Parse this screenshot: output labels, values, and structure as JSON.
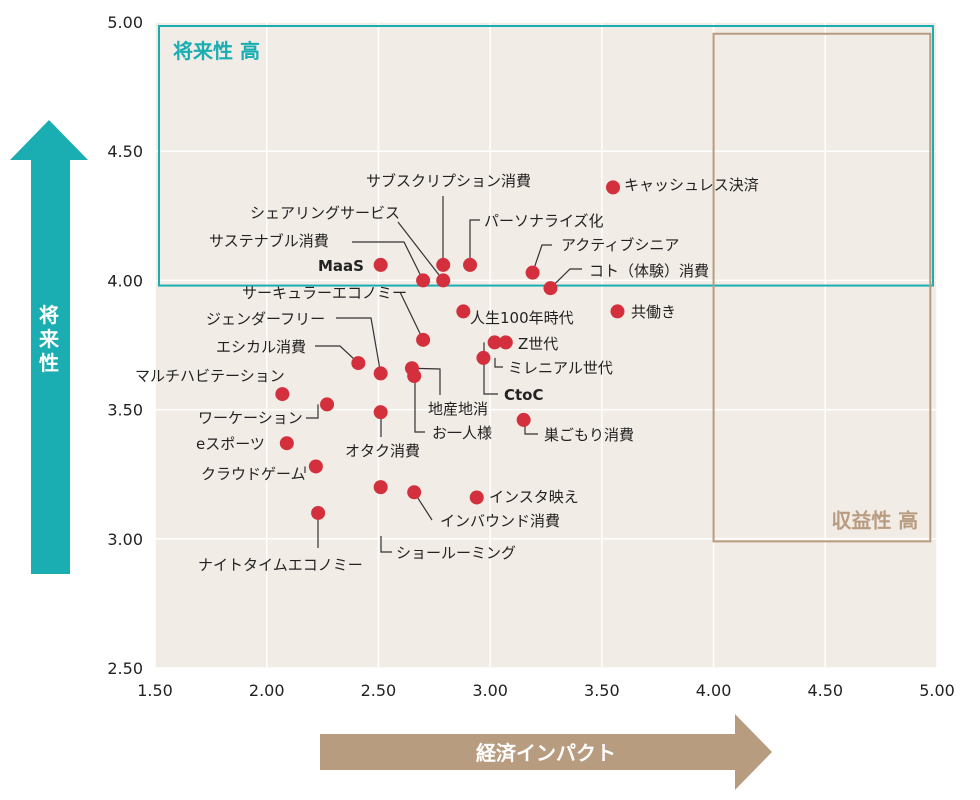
{
  "chart_data": {
    "type": "scatter",
    "xlabel": "経済インパクト",
    "ylabel": "将来性",
    "xlim": [
      1.5,
      5.0
    ],
    "ylim": [
      2.5,
      5.0
    ],
    "x_ticks": [
      "1.50",
      "2.00",
      "2.50",
      "3.00",
      "3.50",
      "4.00",
      "4.50",
      "5.00"
    ],
    "y_ticks": [
      "2.50",
      "3.00",
      "3.50",
      "4.00",
      "4.50",
      "5.00"
    ],
    "grid": true,
    "regions": [
      {
        "label": "将来性 高",
        "x_range": [
          1.5,
          5.0
        ],
        "y_range": [
          3.98,
          5.0
        ],
        "color": "#1aaeb2"
      },
      {
        "label": "収益性 高",
        "x_range": [
          4.0,
          4.97
        ],
        "y_range": [
          2.99,
          4.97
        ],
        "color": "#b89c80"
      }
    ],
    "points": [
      {
        "label": "キャッシュレス決済",
        "x": 3.55,
        "y": 4.36
      },
      {
        "label": "サブスクリプション消費",
        "x": 2.79,
        "y": 4.06
      },
      {
        "label": "パーソナライズ化",
        "x": 2.91,
        "y": 4.06
      },
      {
        "label": "シェアリングサービス",
        "x": 2.79,
        "y": 4.0
      },
      {
        "label": "サステナブル消費",
        "x": 2.7,
        "y": 4.0
      },
      {
        "label": "MaaS",
        "x": 2.51,
        "y": 4.06
      },
      {
        "label": "アクティブシニア",
        "x": 3.19,
        "y": 4.03
      },
      {
        "label": "コト（体験）消費",
        "x": 3.27,
        "y": 3.97
      },
      {
        "label": "共働き",
        "x": 3.57,
        "y": 3.88
      },
      {
        "label": "人生100年時代",
        "x": 2.88,
        "y": 3.88
      },
      {
        "label": "サーキュラーエコノミー",
        "x": 2.7,
        "y": 3.77
      },
      {
        "label": "Z世代",
        "x": 3.07,
        "y": 3.76
      },
      {
        "label": "ミレニアル世代",
        "x": 2.97,
        "y": 3.7
      },
      {
        "label": "CtoC",
        "x": 3.02,
        "y": 3.76
      },
      {
        "label": "ジェンダーフリー",
        "x": 2.51,
        "y": 3.64
      },
      {
        "label": "エシカル消費",
        "x": 2.41,
        "y": 3.68
      },
      {
        "label": "地産地消",
        "x": 2.65,
        "y": 3.66
      },
      {
        "label": "お一人様",
        "x": 2.66,
        "y": 3.63
      },
      {
        "label": "マルチハビテーション",
        "x": 2.07,
        "y": 3.56
      },
      {
        "label": "ワーケーション",
        "x": 2.27,
        "y": 3.52
      },
      {
        "label": "オタク消費",
        "x": 2.51,
        "y": 3.49
      },
      {
        "label": "巣ごもり消費",
        "x": 3.15,
        "y": 3.46
      },
      {
        "label": "eスポーツ",
        "x": 2.09,
        "y": 3.37
      },
      {
        "label": "クラウドゲーム",
        "x": 2.22,
        "y": 3.28
      },
      {
        "label": "インスタ映え",
        "x": 2.94,
        "y": 3.16
      },
      {
        "label": "インバウンド消費",
        "x": 2.66,
        "y": 3.18
      },
      {
        "label": "ショールーミング",
        "x": 2.51,
        "y": 3.2
      },
      {
        "label": "ナイトタイムエコノミー",
        "x": 2.23,
        "y": 3.1
      }
    ]
  },
  "colors": {
    "plot_bg": "#f2ece6",
    "grid": "#ffffff",
    "point": "#d32f3c",
    "teal": "#1aaeb2",
    "tan": "#b89c80"
  }
}
